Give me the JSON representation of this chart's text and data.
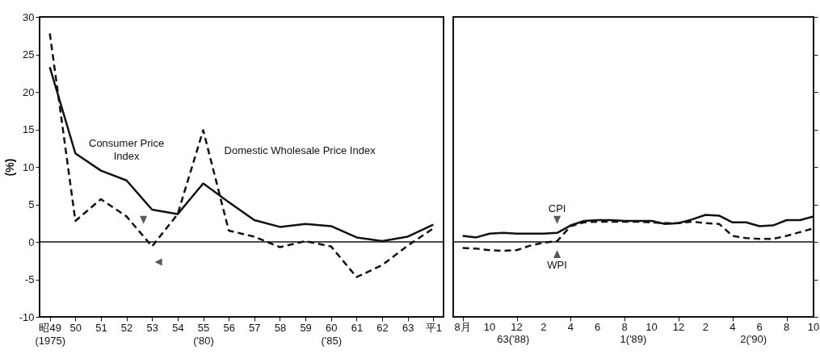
{
  "chart_data": [
    {
      "type": "line",
      "ylabel": "(%)",
      "categories": [
        "昭49\n(1975)",
        "50",
        "51",
        "52",
        "53",
        "54",
        "55\n('80)",
        "56",
        "57",
        "58",
        "59",
        "60\n('85)",
        "61",
        "62",
        "63",
        "平1"
      ],
      "series": [
        {
          "color": "#111111",
          "line_style": "solid",
          "values": [
            23.3,
            11.8,
            9.5,
            8.2,
            4.3,
            3.7,
            7.8,
            5.3,
            2.9,
            2.0,
            2.4,
            2.1,
            0.6,
            0.1,
            0.7,
            2.3
          ]
        },
        {
          "color": "#111111",
          "line_style": "dashed",
          "values": [
            27.8,
            2.8,
            5.7,
            3.4,
            -0.6,
            3.7,
            14.9,
            1.5,
            0.7,
            -0.7,
            0.1,
            -0.6,
            -4.7,
            -3.1,
            -0.5,
            1.8
          ]
        }
      ],
      "ylim": [
        -10,
        30
      ],
      "yticks": [
        -10,
        -5,
        0,
        5,
        10,
        15,
        20,
        25,
        30
      ],
      "grid": false,
      "legend": false,
      "marker": "none",
      "ref_lines": [
        {
          "axis": "y",
          "value": 0,
          "color": "#111111"
        }
      ],
      "annotations": [
        {
          "text": "Consumer Price\nIndex",
          "x": "52",
          "y": 8.2
        },
        {
          "text": "Domestic Wholesale Price Index",
          "x": "55\n('80)",
          "y": 14.9
        }
      ]
    },
    {
      "type": "line",
      "x": [
        "1988-08",
        "1988-09",
        "1988-10",
        "1988-11",
        "1988-12",
        "1989-01",
        "1989-02",
        "1989-03",
        "1989-04",
        "1989-05",
        "1989-06",
        "1989-07",
        "1989-08",
        "1989-09",
        "1989-10",
        "1989-11",
        "1989-12",
        "1990-01",
        "1990-02",
        "1990-03",
        "1990-04",
        "1990-05",
        "1990-06",
        "1990-07",
        "1990-08",
        "1990-09",
        "1990-10"
      ],
      "series": [
        {
          "color": "#111111",
          "line_style": "solid",
          "values": [
            0.8,
            0.6,
            1.1,
            1.2,
            1.1,
            1.1,
            1.1,
            1.2,
            2.2,
            2.8,
            2.9,
            2.9,
            2.8,
            2.8,
            2.8,
            2.4,
            2.5,
            3.0,
            3.6,
            3.5,
            2.6,
            2.6,
            2.1,
            2.2,
            2.9,
            2.9,
            3.4
          ]
        },
        {
          "color": "#111111",
          "line_style": "dashed",
          "values": [
            -0.8,
            -0.9,
            -1.1,
            -1.2,
            -1.1,
            -0.5,
            -0.1,
            0.1,
            2.1,
            2.6,
            2.7,
            2.7,
            2.7,
            2.7,
            2.6,
            2.5,
            2.5,
            2.7,
            2.5,
            2.4,
            0.8,
            0.5,
            0.4,
            0.4,
            0.8,
            1.3,
            1.8
          ]
        }
      ],
      "xlim": [
        "1988-07-10",
        "1990-10"
      ],
      "xticks": [
        {
          "value": "1988-08",
          "label": "8月"
        },
        {
          "value": "1988-10",
          "label": "10"
        },
        {
          "value": "1988-12",
          "label": "12"
        },
        {
          "value": "1989-02",
          "label": "2"
        },
        {
          "value": "1989-04",
          "label": "4"
        },
        {
          "value": "1989-06",
          "label": "6"
        },
        {
          "value": "1989-08",
          "label": "8"
        },
        {
          "value": "1989-10",
          "label": "10"
        },
        {
          "value": "1989-12",
          "label": "12"
        },
        {
          "value": "1990-02",
          "label": "2"
        },
        {
          "value": "1990-04",
          "label": "4"
        },
        {
          "value": "1990-06",
          "label": "6"
        },
        {
          "value": "1990-08",
          "label": "8"
        },
        {
          "value": "1990-10",
          "label": "10"
        }
      ],
      "ylim": [
        -10,
        30
      ],
      "yticks": [
        -10,
        -5,
        0,
        5,
        10,
        15,
        20,
        25,
        30
      ],
      "tick_labels": "x",
      "grid": false,
      "legend": false,
      "marker": "none",
      "ref_lines": [
        {
          "axis": "y",
          "value": 0,
          "color": "#111111"
        }
      ],
      "annotations": [
        {
          "text": "CPI",
          "x": "1989-03",
          "y": 1.2
        },
        {
          "text": "WPI",
          "x": "1989-03",
          "y": 0.1
        },
        "63('88)",
        "1('89)",
        "2('90)"
      ]
    }
  ]
}
